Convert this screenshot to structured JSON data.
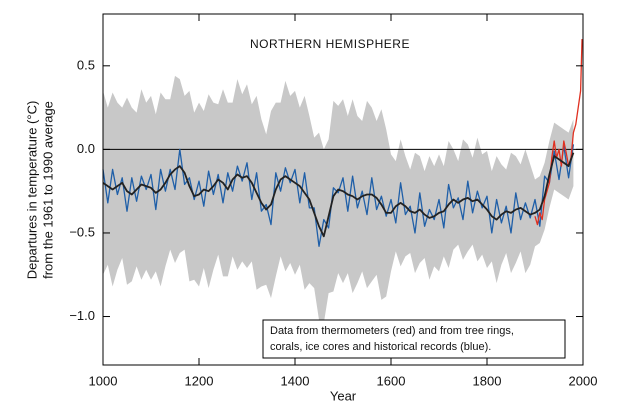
{
  "chart_data": {
    "type": "line",
    "title": "NORTHERN HEMISPHERE",
    "x_label": "Year",
    "y_label": [
      "Departures in temperature (°C)",
      "from the 1961 to 1990 average"
    ],
    "annotation": [
      "Data from thermometers (red) and from tree rings,",
      "corals, ice cores and historical records (blue)."
    ],
    "xlim": [
      1000,
      2000
    ],
    "xticks": [
      1000,
      1200,
      1400,
      1600,
      1800,
      2000
    ],
    "ylim": [
      -1.29,
      0.81
    ],
    "yticks": [
      {
        "value": -1,
        "label": "−1.0"
      },
      {
        "value": -0.5,
        "label": "−0.5"
      },
      {
        "value": 0,
        "label": "0.0"
      },
      0.5
    ],
    "reference_line": 0,
    "x": [
      1000,
      1010,
      1020,
      1030,
      1040,
      1050,
      1060,
      1070,
      1080,
      1090,
      1100,
      1110,
      1120,
      1130,
      1140,
      1150,
      1160,
      1170,
      1180,
      1190,
      1200,
      1210,
      1220,
      1230,
      1240,
      1250,
      1260,
      1270,
      1280,
      1290,
      1300,
      1310,
      1320,
      1330,
      1340,
      1350,
      1360,
      1370,
      1380,
      1390,
      1400,
      1410,
      1420,
      1430,
      1440,
      1450,
      1460,
      1470,
      1480,
      1490,
      1500,
      1510,
      1520,
      1530,
      1540,
      1550,
      1560,
      1570,
      1580,
      1590,
      1600,
      1610,
      1620,
      1630,
      1640,
      1650,
      1660,
      1670,
      1680,
      1690,
      1700,
      1710,
      1720,
      1730,
      1740,
      1750,
      1760,
      1770,
      1780,
      1790,
      1800,
      1810,
      1820,
      1830,
      1840,
      1850,
      1860,
      1870,
      1880,
      1890,
      1900,
      1910,
      1920,
      1930,
      1940,
      1950,
      1960,
      1970,
      1980
    ],
    "band": {
      "color": "#c8c8c8",
      "upper": [
        0.35,
        0.25,
        0.34,
        0.28,
        0.25,
        0.31,
        0.25,
        0.22,
        0.36,
        0.28,
        0.32,
        0.21,
        0.34,
        0.3,
        0.3,
        0.44,
        0.42,
        0.32,
        0.35,
        0.22,
        0.28,
        0.23,
        0.33,
        0.28,
        0.27,
        0.36,
        0.28,
        0.28,
        0.42,
        0.33,
        0.39,
        0.27,
        0.32,
        0.18,
        0.09,
        0.23,
        0.28,
        0.28,
        0.41,
        0.32,
        0.35,
        0.25,
        0.32,
        0.2,
        0.07,
        0.1,
        0.0,
        0.06,
        0.29,
        0.26,
        0.3,
        0.2,
        0.3,
        0.2,
        0.17,
        0.29,
        0.25,
        0.17,
        0.24,
        0.12,
        -0.03,
        -0.07,
        0.06,
        -0.04,
        -0.12,
        -0.02,
        -0.04,
        -0.13,
        -0.04,
        -0.1,
        -0.03,
        -0.1,
        0.05,
        0.0,
        -0.07,
        0.06,
        0.03,
        -0.05,
        0.07,
        -0.03,
        -0.01,
        -0.13,
        -0.04,
        -0.09,
        -0.12,
        -0.02,
        -0.04,
        -0.09,
        0.0,
        -0.09,
        -0.18,
        -0.16,
        -0.08,
        0.05,
        0.16,
        0.14,
        0.12,
        0.1,
        0.18
      ],
      "lower": [
        -0.75,
        -0.69,
        -0.82,
        -0.72,
        -0.65,
        -0.81,
        -0.79,
        -0.7,
        -0.78,
        -0.72,
        -0.78,
        -0.73,
        -0.82,
        -0.7,
        -0.6,
        -0.68,
        -0.62,
        -0.6,
        -0.79,
        -0.78,
        -0.82,
        -0.71,
        -0.83,
        -0.72,
        -0.63,
        -0.76,
        -0.76,
        -0.64,
        -0.72,
        -0.67,
        -0.71,
        -0.67,
        -0.84,
        -0.82,
        -0.81,
        -0.89,
        -0.76,
        -0.64,
        -0.73,
        -0.68,
        -0.75,
        -0.69,
        -0.84,
        -0.8,
        -0.83,
        -1.02,
        -1.04,
        -0.86,
        -0.85,
        -0.74,
        -0.8,
        -0.74,
        -0.86,
        -0.8,
        -0.73,
        -0.83,
        -0.79,
        -0.75,
        -0.9,
        -0.88,
        -0.73,
        -0.61,
        -0.7,
        -0.64,
        -0.62,
        -0.74,
        -0.68,
        -0.65,
        -0.78,
        -0.7,
        -0.73,
        -0.64,
        -0.71,
        -0.6,
        -0.57,
        -0.66,
        -0.61,
        -0.57,
        -0.67,
        -0.63,
        -0.71,
        -0.67,
        -0.8,
        -0.69,
        -0.62,
        -0.74,
        -0.68,
        -0.61,
        -0.74,
        -0.69,
        -0.58,
        -0.56,
        -0.48,
        -0.35,
        -0.24,
        -0.26,
        -0.28,
        -0.3,
        -0.22
      ]
    },
    "series": [
      {
        "color": "#1f5fa8",
        "values": [
          -0.12,
          -0.32,
          -0.12,
          -0.27,
          -0.17,
          -0.37,
          -0.17,
          -0.31,
          -0.16,
          -0.24,
          -0.15,
          -0.36,
          -0.12,
          -0.25,
          -0.12,
          -0.24,
          0.0,
          -0.21,
          -0.17,
          -0.3,
          -0.19,
          -0.34,
          -0.13,
          -0.27,
          -0.15,
          -0.32,
          -0.14,
          -0.25,
          -0.1,
          -0.19,
          -0.08,
          -0.3,
          -0.14,
          -0.37,
          -0.33,
          -0.45,
          -0.14,
          -0.25,
          -0.11,
          -0.2,
          -0.12,
          -0.32,
          -0.14,
          -0.35,
          -0.35,
          -0.58,
          -0.42,
          -0.47,
          -0.23,
          -0.26,
          -0.17,
          -0.37,
          -0.16,
          -0.35,
          -0.25,
          -0.39,
          -0.17,
          -0.36,
          -0.28,
          -0.4,
          -0.3,
          -0.44,
          -0.2,
          -0.39,
          -0.34,
          -0.5,
          -0.26,
          -0.46,
          -0.36,
          -0.42,
          -0.3,
          -0.47,
          -0.21,
          -0.35,
          -0.29,
          -0.42,
          -0.19,
          -0.38,
          -0.25,
          -0.35,
          -0.28,
          -0.5,
          -0.3,
          -0.44,
          -0.34,
          -0.5,
          -0.26,
          -0.42,
          -0.32,
          -0.41,
          -0.3,
          -0.46,
          -0.16,
          -0.2,
          -0.01,
          -0.18,
          0.02,
          -0.17,
          0.03
        ]
      },
      {
        "color": "#e03020",
        "x": [
          1900,
          1905,
          1910,
          1915,
          1920,
          1925,
          1930,
          1935,
          1940,
          1945,
          1950,
          1955,
          1960,
          1965,
          1970,
          1975,
          1980,
          1985,
          1990,
          1995,
          1998
        ],
        "values": [
          -0.4,
          -0.45,
          -0.38,
          -0.42,
          -0.3,
          -0.25,
          -0.2,
          -0.05,
          0.05,
          -0.05,
          0.0,
          -0.1,
          0.05,
          -0.02,
          -0.1,
          -0.05,
          0.1,
          0.15,
          0.25,
          0.35,
          0.66
        ]
      },
      {
        "color": "#222222",
        "values": [
          -0.2,
          -0.22,
          -0.24,
          -0.22,
          -0.2,
          -0.25,
          -0.27,
          -0.24,
          -0.21,
          -0.22,
          -0.23,
          -0.26,
          -0.24,
          -0.2,
          -0.15,
          -0.12,
          -0.1,
          -0.14,
          -0.22,
          -0.28,
          -0.27,
          -0.24,
          -0.25,
          -0.22,
          -0.18,
          -0.2,
          -0.24,
          -0.18,
          -0.15,
          -0.17,
          -0.16,
          -0.2,
          -0.26,
          -0.32,
          -0.36,
          -0.33,
          -0.24,
          -0.18,
          -0.16,
          -0.18,
          -0.2,
          -0.22,
          -0.26,
          -0.3,
          -0.38,
          -0.46,
          -0.52,
          -0.4,
          -0.28,
          -0.24,
          -0.25,
          -0.27,
          -0.28,
          -0.3,
          -0.28,
          -0.27,
          -0.27,
          -0.29,
          -0.33,
          -0.38,
          -0.38,
          -0.34,
          -0.32,
          -0.34,
          -0.37,
          -0.38,
          -0.36,
          -0.39,
          -0.41,
          -0.4,
          -0.38,
          -0.37,
          -0.33,
          -0.3,
          -0.32,
          -0.3,
          -0.29,
          -0.31,
          -0.3,
          -0.33,
          -0.36,
          -0.4,
          -0.42,
          -0.39,
          -0.37,
          -0.38,
          -0.36,
          -0.35,
          -0.37,
          -0.39,
          -0.38,
          -0.36,
          -0.28,
          -0.15,
          -0.04,
          -0.06,
          -0.08,
          -0.1,
          -0.02
        ]
      }
    ]
  }
}
